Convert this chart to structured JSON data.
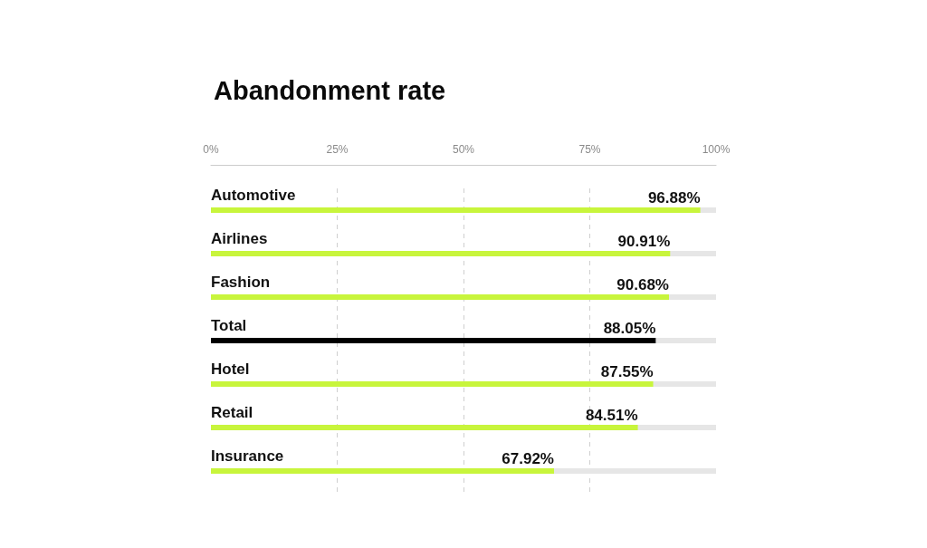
{
  "chart_data": {
    "type": "bar",
    "orientation": "horizontal",
    "title": "Abandonment rate",
    "categories": [
      "Automotive",
      "Airlines",
      "Fashion",
      "Total",
      "Hotel",
      "Retail",
      "Insurance"
    ],
    "values": [
      96.88,
      90.91,
      90.68,
      88.05,
      87.55,
      84.51,
      67.92
    ],
    "colors": [
      "#c8f53c",
      "#c8f53c",
      "#c8f53c",
      "#000000",
      "#c8f53c",
      "#c8f53c",
      "#c8f53c"
    ],
    "value_labels": [
      "96.88%",
      "90.91%",
      "90.68%",
      "88.05%",
      "87.55%",
      "84.51%",
      "67.92%"
    ],
    "xlim": [
      0,
      100
    ],
    "xticks": [
      {
        "value": 0,
        "label": "0%"
      },
      {
        "value": 25,
        "label": "25%"
      },
      {
        "value": 50,
        "label": "50%"
      },
      {
        "value": 75,
        "label": "75%"
      },
      {
        "value": 100,
        "label": "100%"
      }
    ],
    "grid": "x"
  }
}
